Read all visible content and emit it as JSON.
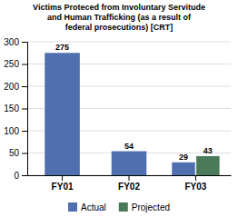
{
  "chart_data": {
    "type": "bar",
    "title": "Victims Proteced from Involuntary Servitude\nand Human Trafficking (as a result of\nfederal prosecutions) [CRT]",
    "categories": [
      "FY01",
      "FY02",
      "FY03"
    ],
    "series": [
      {
        "name": "Actual",
        "color": "#4f6faf",
        "values": [
          275,
          54,
          29
        ]
      },
      {
        "name": "Projected",
        "color": "#4a7a5a",
        "values": [
          null,
          null,
          43
        ]
      }
    ],
    "ylim": [
      0,
      300
    ],
    "yticks": [
      0,
      50,
      100,
      150,
      200,
      250,
      300
    ],
    "grid": true,
    "legend": "bottom",
    "data_labels": true
  }
}
